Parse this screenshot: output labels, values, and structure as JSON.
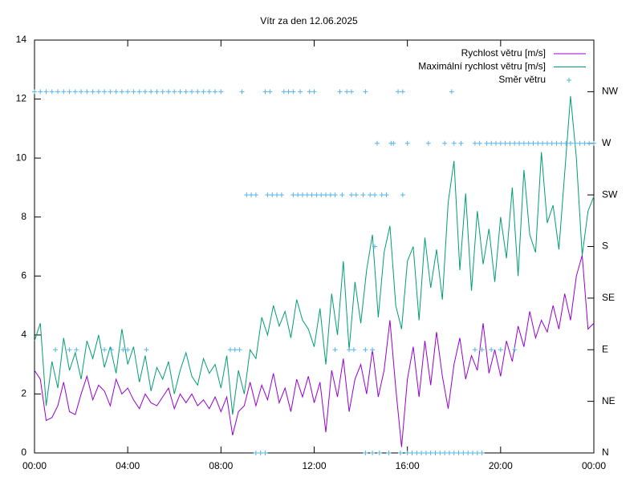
{
  "chart_data": {
    "type": "line",
    "title": "Vítr za den 12.06.2025",
    "legend": "top-right",
    "xlim": [
      0,
      24
    ],
    "xticks": [
      {
        "value": 0,
        "label": "00:00"
      },
      {
        "value": 4,
        "label": "04:00"
      },
      {
        "value": 8,
        "label": "08:00"
      },
      {
        "value": 12,
        "label": "12:00"
      },
      {
        "value": 16,
        "label": "16:00"
      },
      {
        "value": 20,
        "label": "20:00"
      },
      {
        "value": 24,
        "label": "00:00"
      }
    ],
    "ylim": [
      0,
      14
    ],
    "yticks": [
      0,
      2,
      4,
      6,
      8,
      10,
      12,
      14
    ],
    "y2lim": [
      0,
      14
    ],
    "y2ticks": [
      {
        "value": 0,
        "label": "N"
      },
      {
        "value": 1.75,
        "label": "NE"
      },
      {
        "value": 3.5,
        "label": "E"
      },
      {
        "value": 5.25,
        "label": "SE"
      },
      {
        "value": 7,
        "label": "S"
      },
      {
        "value": 8.75,
        "label": "SW"
      },
      {
        "value": 10.5,
        "label": "W"
      },
      {
        "value": 12.25,
        "label": "NW"
      }
    ],
    "x": [
      0,
      0.25,
      0.5,
      0.75,
      1,
      1.25,
      1.5,
      1.75,
      2,
      2.25,
      2.5,
      2.75,
      3,
      3.25,
      3.5,
      3.75,
      4,
      4.25,
      4.5,
      4.75,
      5,
      5.25,
      5.5,
      5.75,
      6,
      6.25,
      6.5,
      6.75,
      7,
      7.25,
      7.5,
      7.75,
      8,
      8.25,
      8.5,
      8.75,
      9,
      9.25,
      9.5,
      9.75,
      10,
      10.25,
      10.5,
      10.75,
      11,
      11.25,
      11.5,
      11.75,
      12,
      12.25,
      12.5,
      12.75,
      13,
      13.25,
      13.5,
      13.75,
      14,
      14.25,
      14.5,
      14.75,
      15,
      15.25,
      15.5,
      15.75,
      16,
      16.25,
      16.5,
      16.75,
      17,
      17.25,
      17.5,
      17.75,
      18,
      18.25,
      18.5,
      18.75,
      19,
      19.25,
      19.5,
      19.75,
      20,
      20.25,
      20.5,
      20.75,
      21,
      21.25,
      21.5,
      21.75,
      22,
      22.25,
      22.5,
      22.75,
      23,
      23.25,
      23.5,
      23.75,
      24
    ],
    "series": [
      {
        "name": "Rychlost větru [m/s]",
        "color": "#9400d3",
        "type": "line",
        "values": [
          2.8,
          2.5,
          1.1,
          1.2,
          1.6,
          2.4,
          1.4,
          1.3,
          2.0,
          2.6,
          1.8,
          2.3,
          2.1,
          1.6,
          2.5,
          2.0,
          2.2,
          1.8,
          1.5,
          2.0,
          1.7,
          1.6,
          1.9,
          2.2,
          1.5,
          2.0,
          1.7,
          2.0,
          1.6,
          1.8,
          1.5,
          1.9,
          1.4,
          1.9,
          0.6,
          1.4,
          1.6,
          2.4,
          1.6,
          2.3,
          1.8,
          2.7,
          1.7,
          2.2,
          1.4,
          2.5,
          1.9,
          2.6,
          1.7,
          2.4,
          0.7,
          2.8,
          1.9,
          3.2,
          1.4,
          2.5,
          3.0,
          2.0,
          3.5,
          1.9,
          2.8,
          4.5,
          2.2,
          0.2,
          2.5,
          3.6,
          1.9,
          3.8,
          2.3,
          4.1,
          2.6,
          1.5,
          3.0,
          3.9,
          2.5,
          3.3,
          2.8,
          4.4,
          2.7,
          3.5,
          2.6,
          3.8,
          3.1,
          4.3,
          3.6,
          4.8,
          3.9,
          4.5,
          4.1,
          5.0,
          4.2,
          5.4,
          4.5,
          6.0,
          6.7,
          4.2,
          4.4
        ]
      },
      {
        "name": "Maximální rychlost větru [m/s]",
        "color": "#009e73",
        "type": "line",
        "values": [
          3.8,
          4.4,
          1.6,
          3.1,
          2.2,
          3.9,
          2.8,
          3.4,
          2.5,
          3.8,
          3.2,
          4.0,
          2.9,
          3.6,
          2.7,
          4.2,
          3.0,
          3.6,
          2.4,
          3.3,
          2.1,
          2.9,
          2.5,
          3.1,
          2.0,
          2.8,
          3.4,
          2.6,
          2.3,
          3.2,
          2.7,
          3.0,
          2.2,
          3.3,
          1.3,
          2.8,
          2.0,
          3.5,
          3.2,
          4.6,
          4.0,
          5.0,
          4.3,
          4.8,
          3.9,
          5.2,
          4.5,
          4.2,
          3.6,
          4.9,
          3.0,
          5.4,
          4.0,
          6.5,
          3.5,
          5.8,
          4.4,
          6.2,
          7.4,
          4.6,
          6.8,
          7.7,
          5.0,
          4.2,
          6.5,
          7.0,
          4.5,
          7.3,
          5.6,
          6.9,
          5.2,
          8.5,
          9.9,
          6.2,
          8.8,
          5.5,
          8.2,
          6.4,
          7.6,
          5.8,
          8.0,
          6.6,
          9.0,
          6.0,
          9.6,
          7.4,
          6.8,
          10.2,
          7.8,
          8.4,
          6.9,
          9.5,
          12.1,
          10.0,
          6.7,
          8.2,
          8.7
        ]
      },
      {
        "name": "Směr větru",
        "color": "#56b4e9",
        "type": "scatter",
        "axis": "y2",
        "x": [
          0,
          0.25,
          0.5,
          0.75,
          1,
          1.25,
          1.5,
          1.75,
          2,
          2.25,
          2.5,
          2.75,
          3,
          3.25,
          3.5,
          3.75,
          4,
          4.25,
          4.5,
          4.75,
          5,
          5.25,
          5.5,
          5.75,
          6,
          6.25,
          6.5,
          6.75,
          7,
          7.25,
          7.5,
          7.75,
          8,
          8.9,
          9.9,
          10.1,
          10.7,
          10.9,
          11.1,
          11.4,
          11.8,
          12.0,
          13.1,
          13.4,
          13.6,
          14.2,
          15.6,
          15.8,
          17.9,
          14.7,
          15.3,
          15.4,
          16.0,
          16.9,
          17.6,
          18.0,
          18.3,
          18.9,
          19.1,
          19.4,
          19.6,
          19.8,
          20.0,
          20.2,
          20.4,
          20.6,
          20.8,
          21.0,
          21.2,
          21.4,
          21.6,
          21.8,
          22.0,
          22.2,
          22.4,
          22.6,
          22.8,
          23.0,
          23.2,
          23.4,
          23.6,
          23.8,
          24.0,
          9.1,
          9.3,
          9.5,
          10.0,
          10.2,
          10.4,
          10.6,
          11.1,
          11.3,
          11.5,
          11.7,
          11.9,
          12.1,
          12.3,
          12.5,
          12.7,
          12.9,
          13.2,
          13.6,
          13.8,
          14.1,
          14.4,
          14.6,
          14.9,
          15.1,
          15.8,
          14.6,
          0.9,
          1.5,
          1.8,
          3.0,
          3.3,
          3.8,
          4.0,
          4.8,
          8.4,
          8.6,
          8.8,
          12.9,
          13.5,
          13.7,
          14.2,
          14.5,
          18.9,
          19.2,
          19.6,
          20.0,
          20.6,
          9.5,
          9.7,
          9.9,
          14.2,
          14.5,
          14.8,
          15.2,
          15.7,
          16.0,
          16.2,
          16.4,
          16.6,
          16.8,
          17.0,
          17.2,
          17.4,
          17.6,
          17.8,
          18.0,
          18.2,
          18.4,
          18.6,
          18.8,
          19.0,
          19.2
        ],
        "values": [
          12.25,
          12.25,
          12.25,
          12.25,
          12.25,
          12.25,
          12.25,
          12.25,
          12.25,
          12.25,
          12.25,
          12.25,
          12.25,
          12.25,
          12.25,
          12.25,
          12.25,
          12.25,
          12.25,
          12.25,
          12.25,
          12.25,
          12.25,
          12.25,
          12.25,
          12.25,
          12.25,
          12.25,
          12.25,
          12.25,
          12.25,
          12.25,
          12.25,
          12.25,
          12.25,
          12.25,
          12.25,
          12.25,
          12.25,
          12.25,
          12.25,
          12.25,
          12.25,
          12.25,
          12.25,
          12.25,
          12.25,
          12.25,
          12.25,
          10.5,
          10.5,
          10.5,
          10.5,
          10.5,
          10.5,
          10.5,
          10.5,
          10.5,
          10.5,
          10.5,
          10.5,
          10.5,
          10.5,
          10.5,
          10.5,
          10.5,
          10.5,
          10.5,
          10.5,
          10.5,
          10.5,
          10.5,
          10.5,
          10.5,
          10.5,
          10.5,
          10.5,
          10.5,
          10.5,
          10.5,
          10.5,
          10.5,
          10.5,
          8.75,
          8.75,
          8.75,
          8.75,
          8.75,
          8.75,
          8.75,
          8.75,
          8.75,
          8.75,
          8.75,
          8.75,
          8.75,
          8.75,
          8.75,
          8.75,
          8.75,
          8.75,
          8.75,
          8.75,
          8.75,
          8.75,
          8.75,
          8.75,
          8.75,
          8.75,
          7,
          3.5,
          3.5,
          3.5,
          3.5,
          3.5,
          3.5,
          3.5,
          3.5,
          3.5,
          3.5,
          3.5,
          3.5,
          3.5,
          3.5,
          3.5,
          3.5,
          3.5,
          3.5,
          3.5,
          3.5,
          3.5,
          0,
          0,
          0,
          0,
          0,
          0,
          0,
          0,
          0,
          0,
          0,
          0,
          0,
          0,
          0,
          0,
          0,
          0,
          0,
          0,
          0,
          0,
          0,
          0,
          0
        ]
      }
    ]
  }
}
